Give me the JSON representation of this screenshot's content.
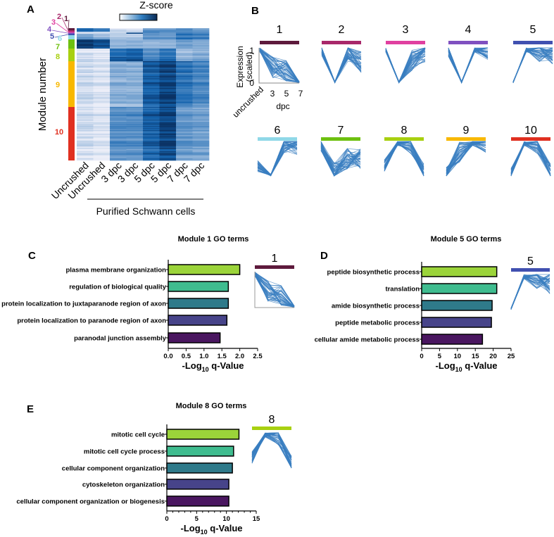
{
  "panels": {
    "a": "A",
    "b": "B",
    "c": "C",
    "d": "D",
    "e": "E"
  },
  "chart_data": [
    {
      "type": "heatmap",
      "panel": "A",
      "colorbar_label": "Z-score",
      "ylabel": "Module number",
      "xlabel": "Purified Schwann cells",
      "columns": [
        "Uncrushed",
        "Uncrushed",
        "3 dpc",
        "3 dpc",
        "5 dpc",
        "5 dpc",
        "7 dpc",
        "7 dpc"
      ],
      "modules": [
        {
          "label": "1",
          "color": "#5e1a3c",
          "relative_size": 3,
          "intensity": [
            0.8,
            0.7,
            0.1,
            0.1,
            0.5,
            0.5,
            0.6,
            0.5
          ]
        },
        {
          "label": "2",
          "color": "#a8286a",
          "relative_size": 2,
          "intensity": [
            0.75,
            0.6,
            0.1,
            0.1,
            0.55,
            0.5,
            0.5,
            0.45
          ]
        },
        {
          "label": "3",
          "color": "#e040a0",
          "relative_size": 1.5,
          "intensity": [
            0.1,
            0.05,
            0.1,
            0.2,
            0.6,
            0.55,
            0.6,
            0.55
          ]
        },
        {
          "label": "4",
          "color": "#8050c0",
          "relative_size": 1.5,
          "intensity": [
            0.1,
            0.1,
            0.2,
            0.9,
            0.5,
            0.55,
            0.7,
            0.6
          ]
        },
        {
          "label": "5",
          "color": "#4050b0",
          "relative_size": 2,
          "intensity": [
            0.4,
            0.3,
            0.15,
            0.2,
            0.55,
            0.5,
            0.75,
            0.65
          ]
        },
        {
          "label": "6",
          "color": "#90d8e8",
          "relative_size": 6,
          "intensity": [
            0.45,
            0.3,
            0.2,
            0.2,
            0.5,
            0.5,
            0.65,
            0.6
          ]
        },
        {
          "label": "7",
          "color": "#6ec010",
          "relative_size": 13,
          "intensity": [
            0.95,
            0.85,
            0.3,
            0.3,
            0.3,
            0.3,
            0.4,
            0.35
          ]
        },
        {
          "label": "8",
          "color": "#a8d010",
          "relative_size": 18,
          "intensity": [
            0.1,
            0.05,
            0.8,
            0.85,
            0.6,
            0.75,
            0.35,
            0.4
          ]
        },
        {
          "label": "9",
          "color": "#f8b800",
          "relative_size": 65,
          "intensity": [
            0.1,
            0.05,
            0.35,
            0.35,
            0.82,
            0.92,
            0.7,
            0.6
          ]
        },
        {
          "label": "10",
          "color": "#e03020",
          "relative_size": 76,
          "intensity": [
            0.1,
            0.04,
            0.55,
            0.55,
            0.8,
            0.92,
            0.5,
            0.45
          ]
        }
      ]
    },
    {
      "type": "line",
      "panel": "B",
      "ylabel_line1": "Expression",
      "ylabel_line2": "(scaled)",
      "xlabel": "dpc",
      "x_ticks": [
        "uncrushed",
        "3",
        "5",
        "7"
      ],
      "y_ticks": [
        "0",
        "1"
      ],
      "ylim": [
        0,
        1
      ],
      "profiles": [
        {
          "label": "1",
          "color": "#5e1a3c",
          "mean": [
            1,
            0.45,
            0.35,
            0
          ]
        },
        {
          "label": "2",
          "color": "#a8286a",
          "mean": [
            0.95,
            0,
            0.9,
            0.6
          ]
        },
        {
          "label": "3",
          "color": "#e040a0",
          "mean": [
            1,
            0,
            0.65,
            0.9
          ]
        },
        {
          "label": "4",
          "color": "#8050c0",
          "mean": [
            0.9,
            0,
            1,
            0.95
          ]
        },
        {
          "label": "5",
          "color": "#4050b0",
          "mean": [
            0,
            1,
            0.9,
            0.75
          ]
        },
        {
          "label": "6",
          "color": "#90d8e8",
          "mean": [
            0.3,
            0,
            0.95,
            0.9
          ]
        },
        {
          "label": "7",
          "color": "#6ec010",
          "mean": [
            0.9,
            0.1,
            0.5,
            0.5
          ]
        },
        {
          "label": "8",
          "color": "#a8d010",
          "mean": [
            0.3,
            1,
            0.95,
            0.05
          ]
        },
        {
          "label": "9",
          "color": "#f8b800",
          "mean": [
            0.1,
            0.7,
            1,
            0.95
          ]
        },
        {
          "label": "10",
          "color": "#e03020",
          "mean": [
            0.05,
            1,
            0.95,
            0.05
          ]
        }
      ]
    },
    {
      "type": "bar",
      "panel": "C",
      "title": "Module 1 GO terms",
      "inset_module": "1",
      "inset_color": "#5e1a3c",
      "categories": [
        "plasma membrane organization",
        "regulation of biological quality",
        "protein localization to juxtaparanode region of axon",
        "protein localization to paranode region of axon",
        "paranodal junction assembly"
      ],
      "values": [
        2.0,
        1.68,
        1.68,
        1.64,
        1.45
      ],
      "xlim": [
        0,
        2.5
      ],
      "ticks": [
        "0.0",
        "0.5",
        "1.0",
        "1.5",
        "2.0",
        "2.5"
      ],
      "xlabel_main": "-Log",
      "xlabel_sub": "10",
      "xlabel_rest": " q-Value"
    },
    {
      "type": "bar",
      "panel": "D",
      "title": "Module 5 GO terms",
      "inset_module": "5",
      "inset_color": "#4050b0",
      "categories": [
        "peptide biosynthetic process",
        "translation",
        "amide biosynthetic process",
        "peptide metabolic process",
        "cellular amide metabolic process"
      ],
      "values": [
        21,
        21,
        19.7,
        19.5,
        17
      ],
      "xlim": [
        0,
        25
      ],
      "ticks": [
        "0",
        "5",
        "10",
        "15",
        "20",
        "25"
      ],
      "xlabel_main": "-Log",
      "xlabel_sub": "10",
      "xlabel_rest": " q-Value"
    },
    {
      "type": "bar",
      "panel": "E",
      "title": "Module 8 GO terms",
      "inset_module": "8",
      "inset_color": "#a8d010",
      "categories": [
        "mitotic cell cycle",
        "mitotic cell cycle process",
        "cellular component organization",
        "cytoskeleton organization",
        "cellular component organization or biogenesis"
      ],
      "values": [
        12.1,
        11.2,
        11.0,
        10.4,
        10.4
      ],
      "xlim": [
        0,
        15
      ],
      "ticks": [
        "0",
        "5",
        "10",
        "15"
      ],
      "xlabel_main": "-Log",
      "xlabel_sub": "10",
      "xlabel_rest": " q-Value"
    }
  ],
  "bar_colors": [
    "#9bd43a",
    "#3fbc8f",
    "#2f7a8a",
    "#47448a",
    "#4a1660"
  ],
  "line_color": "#3a7ec0"
}
